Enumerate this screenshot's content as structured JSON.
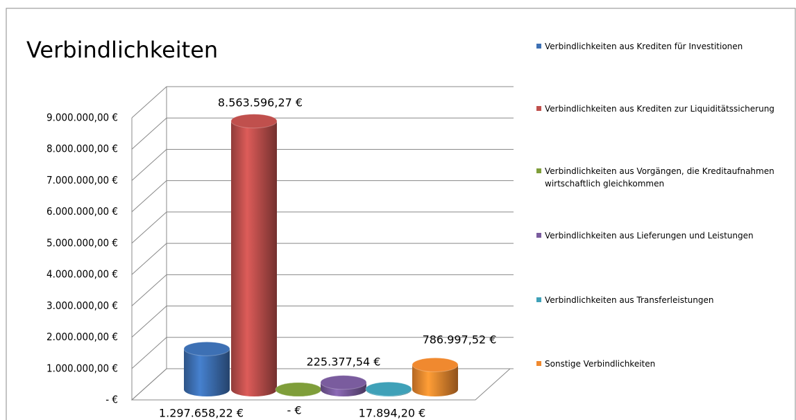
{
  "chart_data": {
    "type": "bar3d",
    "title": "Verbindlichkeiten",
    "ylim": [
      0,
      9000000
    ],
    "yticks": [
      {
        "value": 0,
        "label": "- €"
      },
      {
        "value": 1000000,
        "label": "1.000.000,00 €"
      },
      {
        "value": 2000000,
        "label": "2.000.000,00 €"
      },
      {
        "value": 3000000,
        "label": "3.000.000,00 €"
      },
      {
        "value": 4000000,
        "label": "4.000.000,00 €"
      },
      {
        "value": 5000000,
        "label": "5.000.000,00 €"
      },
      {
        "value": 6000000,
        "label": "6.000.000,00 €"
      },
      {
        "value": 7000000,
        "label": "7.000.000,00 €"
      },
      {
        "value": 8000000,
        "label": "8.000.000,00 €"
      },
      {
        "value": 9000000,
        "label": "9.000.000,00 €"
      }
    ],
    "grid": true,
    "legend": "right",
    "series": [
      {
        "name": "Verbindlichkeiten aus Krediten für Investitionen",
        "color": "#3d70b4",
        "values": [
          1297658.22
        ],
        "value_labels": [
          "1.297.658,22 €"
        ]
      },
      {
        "name": "Verbindlichkeiten aus Krediten zur Liquiditätssicherung",
        "color": "#c0504d",
        "values": [
          8563596.27
        ],
        "value_labels": [
          "8.563.596,27 €"
        ]
      },
      {
        "name": "Verbindlichkeiten aus Vorgängen, die Kreditaufnahmen wirtschaftlich gleichkommen",
        "color": "#7f9e3a",
        "values": [
          0
        ],
        "value_labels": [
          "- €"
        ]
      },
      {
        "name": "Verbindlichkeiten aus Lieferungen und Leistungen",
        "color": "#7a5c9e",
        "values": [
          225377.54
        ],
        "value_labels": [
          "225.377,54 €"
        ]
      },
      {
        "name": "Verbindlichkeiten aus Transferleistungen",
        "color": "#3fa1b8",
        "values": [
          17894.2
        ],
        "value_labels": [
          "17.894,20 €"
        ]
      },
      {
        "name": "Sonstige Verbindlichkeiten",
        "color": "#f0892f",
        "values": [
          786997.52
        ],
        "value_labels": [
          "786.997,52 €"
        ]
      }
    ]
  }
}
